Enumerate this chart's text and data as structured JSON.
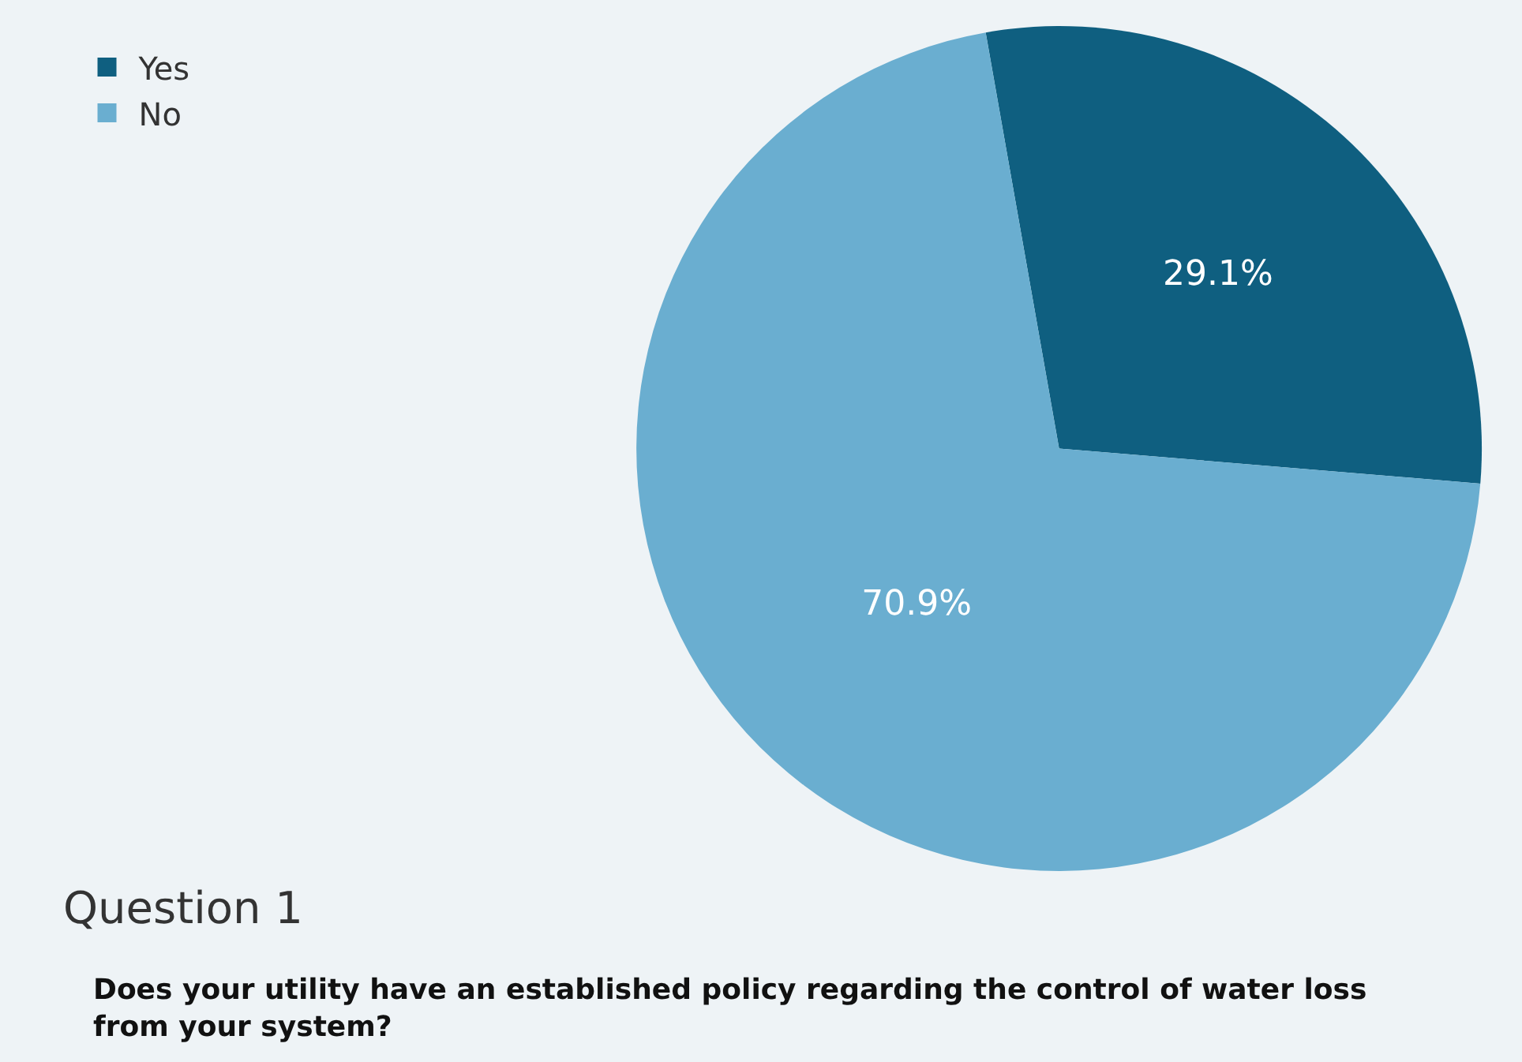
{
  "chart_data": {
    "type": "pie",
    "title": "Question 1",
    "subtitle": "Does your utility have an established policy regarding the control of water loss from your system?",
    "categories": [
      "Yes",
      "No"
    ],
    "values": [
      29.1,
      70.9
    ],
    "colors": [
      "#0f5f80",
      "#6aaed0"
    ],
    "value_labels": [
      "29.1%",
      "70.9%"
    ],
    "legend": "top left"
  }
}
